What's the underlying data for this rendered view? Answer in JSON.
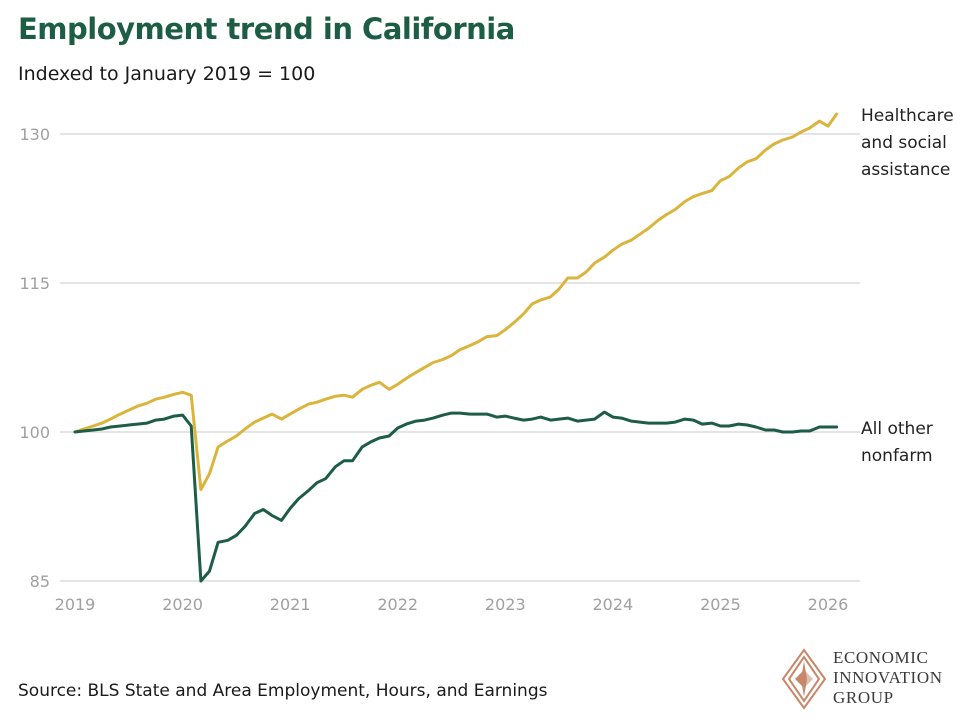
{
  "header": {
    "title": "Employment trend in California",
    "subtitle": "Indexed to January 2019 = 100"
  },
  "footer": {
    "source": "Source: BLS State and Area Employment, Hours, and Earnings"
  },
  "logo": {
    "icon": "diamond-logo-icon",
    "color": "#c8876a",
    "lines": [
      "ECONOMIC",
      "INNOVATION",
      "GROUP"
    ]
  },
  "colors": {
    "healthcare": "#dbb43c",
    "other": "#1e5d45",
    "grid": "#d4d4d4",
    "title": "#1e5d45"
  },
  "chart_data": {
    "type": "line",
    "title": "Employment trend in California",
    "subtitle": "Indexed to January 2019 = 100",
    "xlabel": "",
    "ylabel": "",
    "xlim": [
      2019,
      2026.25
    ],
    "ylim": [
      85,
      133
    ],
    "y_ticks": [
      85,
      100,
      115,
      130
    ],
    "x_ticks": [
      2019,
      2020,
      2021,
      2022,
      2023,
      2024,
      2025,
      2026
    ],
    "grid": "horizontal",
    "legend": "direct labels at right end of lines",
    "series": [
      {
        "key": "healthcare",
        "name_lines": [
          "Healthcare",
          "and social",
          "assistance"
        ],
        "color": "#dbb43c",
        "points": [
          [
            2019.0,
            100.0
          ],
          [
            2019.08,
            100.3
          ],
          [
            2019.17,
            100.6
          ],
          [
            2019.25,
            100.9
          ],
          [
            2019.33,
            101.3
          ],
          [
            2019.42,
            101.8
          ],
          [
            2019.5,
            102.2
          ],
          [
            2019.58,
            102.6
          ],
          [
            2019.67,
            102.9
          ],
          [
            2019.75,
            103.3
          ],
          [
            2019.83,
            103.5
          ],
          [
            2019.92,
            103.8
          ],
          [
            2020.0,
            104.0
          ],
          [
            2020.08,
            103.7
          ],
          [
            2020.17,
            94.2
          ],
          [
            2020.25,
            95.8
          ],
          [
            2020.33,
            98.5
          ],
          [
            2020.42,
            99.1
          ],
          [
            2020.5,
            99.6
          ],
          [
            2020.58,
            100.3
          ],
          [
            2020.67,
            101.0
          ],
          [
            2020.75,
            101.4
          ],
          [
            2020.83,
            101.8
          ],
          [
            2020.92,
            101.3
          ],
          [
            2021.0,
            101.8
          ],
          [
            2021.08,
            102.3
          ],
          [
            2021.17,
            102.8
          ],
          [
            2021.25,
            103.0
          ],
          [
            2021.33,
            103.3
          ],
          [
            2021.42,
            103.6
          ],
          [
            2021.5,
            103.7
          ],
          [
            2021.58,
            103.5
          ],
          [
            2021.67,
            104.3
          ],
          [
            2021.75,
            104.7
          ],
          [
            2021.83,
            105.0
          ],
          [
            2021.92,
            104.3
          ],
          [
            2022.0,
            104.8
          ],
          [
            2022.08,
            105.4
          ],
          [
            2022.17,
            106.0
          ],
          [
            2022.25,
            106.5
          ],
          [
            2022.33,
            107.0
          ],
          [
            2022.42,
            107.3
          ],
          [
            2022.5,
            107.7
          ],
          [
            2022.58,
            108.3
          ],
          [
            2022.67,
            108.7
          ],
          [
            2022.75,
            109.1
          ],
          [
            2022.83,
            109.6
          ],
          [
            2022.92,
            109.7
          ],
          [
            2023.0,
            110.3
          ],
          [
            2023.08,
            111.0
          ],
          [
            2023.17,
            111.9
          ],
          [
            2023.25,
            112.9
          ],
          [
            2023.33,
            113.3
          ],
          [
            2023.42,
            113.6
          ],
          [
            2023.5,
            114.4
          ],
          [
            2023.58,
            115.5
          ],
          [
            2023.67,
            115.5
          ],
          [
            2023.75,
            116.1
          ],
          [
            2023.83,
            117.0
          ],
          [
            2023.92,
            117.6
          ],
          [
            2024.0,
            118.3
          ],
          [
            2024.08,
            118.9
          ],
          [
            2024.17,
            119.3
          ],
          [
            2024.25,
            119.9
          ],
          [
            2024.33,
            120.5
          ],
          [
            2024.42,
            121.3
          ],
          [
            2024.5,
            121.9
          ],
          [
            2024.58,
            122.4
          ],
          [
            2024.67,
            123.2
          ],
          [
            2024.75,
            123.7
          ],
          [
            2024.83,
            124.0
          ],
          [
            2024.92,
            124.3
          ],
          [
            2025.0,
            125.3
          ],
          [
            2025.08,
            125.7
          ],
          [
            2025.17,
            126.6
          ],
          [
            2025.25,
            127.2
          ],
          [
            2025.33,
            127.5
          ],
          [
            2025.42,
            128.4
          ],
          [
            2025.5,
            129.0
          ],
          [
            2025.58,
            129.4
          ],
          [
            2025.67,
            129.7
          ],
          [
            2025.75,
            130.2
          ],
          [
            2025.83,
            130.6
          ],
          [
            2025.92,
            131.3
          ],
          [
            2026.0,
            130.8
          ],
          [
            2026.08,
            132.0
          ]
        ]
      },
      {
        "key": "other",
        "name_lines": [
          "All other",
          "nonfarm"
        ],
        "color": "#1e5d45",
        "points": [
          [
            2019.0,
            100.0
          ],
          [
            2019.08,
            100.1
          ],
          [
            2019.17,
            100.2
          ],
          [
            2019.25,
            100.3
          ],
          [
            2019.33,
            100.5
          ],
          [
            2019.42,
            100.6
          ],
          [
            2019.5,
            100.7
          ],
          [
            2019.58,
            100.8
          ],
          [
            2019.67,
            100.9
          ],
          [
            2019.75,
            101.2
          ],
          [
            2019.83,
            101.3
          ],
          [
            2019.92,
            101.6
          ],
          [
            2020.0,
            101.7
          ],
          [
            2020.08,
            100.6
          ],
          [
            2020.17,
            85.0
          ],
          [
            2020.25,
            86.0
          ],
          [
            2020.33,
            88.9
          ],
          [
            2020.42,
            89.1
          ],
          [
            2020.5,
            89.6
          ],
          [
            2020.58,
            90.5
          ],
          [
            2020.67,
            91.8
          ],
          [
            2020.75,
            92.2
          ],
          [
            2020.83,
            91.6
          ],
          [
            2020.92,
            91.1
          ],
          [
            2021.0,
            92.3
          ],
          [
            2021.08,
            93.3
          ],
          [
            2021.17,
            94.1
          ],
          [
            2021.25,
            94.9
          ],
          [
            2021.33,
            95.3
          ],
          [
            2021.42,
            96.5
          ],
          [
            2021.5,
            97.1
          ],
          [
            2021.58,
            97.1
          ],
          [
            2021.67,
            98.5
          ],
          [
            2021.75,
            99.0
          ],
          [
            2021.83,
            99.4
          ],
          [
            2021.92,
            99.6
          ],
          [
            2022.0,
            100.4
          ],
          [
            2022.08,
            100.8
          ],
          [
            2022.17,
            101.1
          ],
          [
            2022.25,
            101.2
          ],
          [
            2022.33,
            101.4
          ],
          [
            2022.42,
            101.7
          ],
          [
            2022.5,
            101.9
          ],
          [
            2022.58,
            101.9
          ],
          [
            2022.67,
            101.8
          ],
          [
            2022.75,
            101.8
          ],
          [
            2022.83,
            101.8
          ],
          [
            2022.92,
            101.5
          ],
          [
            2023.0,
            101.6
          ],
          [
            2023.08,
            101.4
          ],
          [
            2023.17,
            101.2
          ],
          [
            2023.25,
            101.3
          ],
          [
            2023.33,
            101.5
          ],
          [
            2023.42,
            101.2
          ],
          [
            2023.5,
            101.3
          ],
          [
            2023.58,
            101.4
          ],
          [
            2023.67,
            101.1
          ],
          [
            2023.75,
            101.2
          ],
          [
            2023.83,
            101.3
          ],
          [
            2023.92,
            102.0
          ],
          [
            2024.0,
            101.5
          ],
          [
            2024.08,
            101.4
          ],
          [
            2024.17,
            101.1
          ],
          [
            2024.25,
            101.0
          ],
          [
            2024.33,
            100.9
          ],
          [
            2024.42,
            100.9
          ],
          [
            2024.5,
            100.9
          ],
          [
            2024.58,
            101.0
          ],
          [
            2024.67,
            101.3
          ],
          [
            2024.75,
            101.2
          ],
          [
            2024.83,
            100.8
          ],
          [
            2024.92,
            100.9
          ],
          [
            2025.0,
            100.6
          ],
          [
            2025.08,
            100.6
          ],
          [
            2025.17,
            100.8
          ],
          [
            2025.25,
            100.7
          ],
          [
            2025.33,
            100.5
          ],
          [
            2025.42,
            100.2
          ],
          [
            2025.5,
            100.2
          ],
          [
            2025.58,
            100.0
          ],
          [
            2025.67,
            100.0
          ],
          [
            2025.75,
            100.1
          ],
          [
            2025.83,
            100.1
          ],
          [
            2025.92,
            100.5
          ],
          [
            2026.0,
            100.5
          ],
          [
            2026.08,
            100.5
          ]
        ]
      }
    ]
  }
}
